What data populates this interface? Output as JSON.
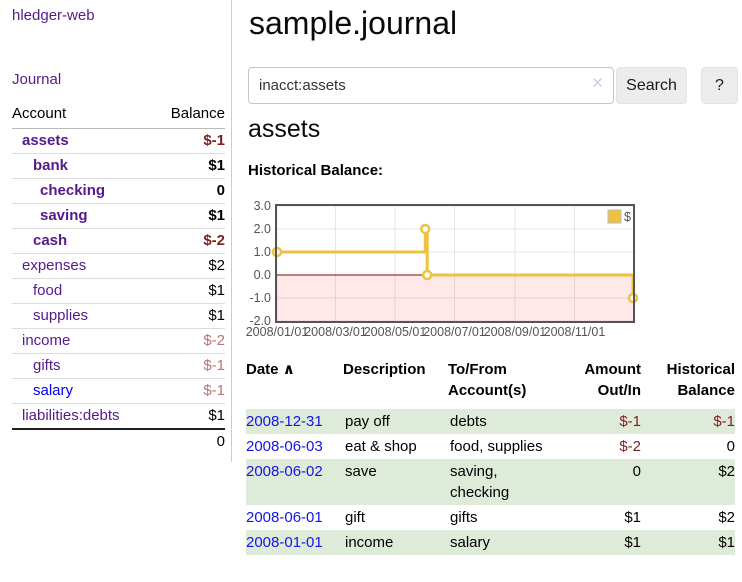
{
  "sidebar": {
    "brand": "hledger-web",
    "journal_link": "Journal",
    "accounts_table": {
      "col_account": "Account",
      "col_balance": "Balance",
      "rows": [
        {
          "name": "assets",
          "balance": "$-1",
          "name_class": "acct-link b",
          "bal_class": "neg-dark b"
        },
        {
          "name": "bank",
          "balance": "$1",
          "name_class": "acct-link b",
          "bal_class": "pos b"
        },
        {
          "name": "checking",
          "balance": "0",
          "name_class": "acct-link b",
          "bal_class": "pos b"
        },
        {
          "name": "saving",
          "balance": "$1",
          "name_class": "acct-link b",
          "bal_class": "pos b"
        },
        {
          "name": "cash",
          "balance": "$-2",
          "name_class": "acct-link b",
          "bal_class": "neg-dark b"
        },
        {
          "name": "expenses",
          "balance": "$2",
          "name_class": "acct-link",
          "bal_class": "pos"
        },
        {
          "name": "food",
          "balance": "$1",
          "name_class": "acct-link",
          "bal_class": "pos"
        },
        {
          "name": "supplies",
          "balance": "$1",
          "name_class": "acct-link",
          "bal_class": "pos"
        },
        {
          "name": "income",
          "balance": "$-2",
          "name_class": "acct-link",
          "bal_class": "neg-soft"
        },
        {
          "name": "gifts",
          "balance": "$-1",
          "name_class": "acct-link",
          "bal_class": "neg-soft"
        },
        {
          "name": "salary",
          "balance": "$-1",
          "name_class": "acct-link unvisited",
          "bal_class": "neg-soft"
        },
        {
          "name": "liabilities:debts",
          "balance": "$1",
          "name_class": "acct-link",
          "bal_class": "pos"
        }
      ],
      "total": "0"
    }
  },
  "header": {
    "title": "sample.journal"
  },
  "search": {
    "value": "inacct:assets",
    "clear_icon": "×",
    "search_label": "Search",
    "help_label": "?"
  },
  "account_page": {
    "heading": "assets",
    "chart_title": "Historical Balance:"
  },
  "chart_data": {
    "type": "line",
    "steps": true,
    "series": [
      {
        "name": "$",
        "color": "#EDC240",
        "points": [
          [
            "2008-01-01",
            1.0
          ],
          [
            "2008-06-01",
            2.0
          ],
          [
            "2008-06-03",
            0.0
          ],
          [
            "2008-12-31",
            -1.0
          ]
        ]
      }
    ],
    "x_range": [
      "2008-01-01",
      "2008-12-31"
    ],
    "ylim": [
      -2.0,
      3.0
    ],
    "y_ticks": [
      {
        "v": 3.0,
        "label": "3.0"
      },
      {
        "v": 2.0,
        "label": "2.0"
      },
      {
        "v": 1.0,
        "label": "1.0"
      },
      {
        "v": 0.0,
        "label": "0.0"
      },
      {
        "v": -1.0,
        "label": "-1.0"
      },
      {
        "v": -2.0,
        "label": "-2.0"
      }
    ],
    "x_ticks": [
      {
        "v": "2008-01-01",
        "label": "2008/01/01"
      },
      {
        "v": "2008-03-01",
        "label": "2008/03/01"
      },
      {
        "v": "2008-05-01",
        "label": "2008/05/01"
      },
      {
        "v": "2008-07-01",
        "label": "2008/07/01"
      },
      {
        "v": "2008-09-01",
        "label": "2008/09/01"
      },
      {
        "v": "2008-11-01",
        "label": "2008/11/01"
      }
    ],
    "grid": true,
    "legend_position": "top-right",
    "zero_line_color": "#8B0000",
    "negative_region_color": "rgba(255,0,0,0.09)",
    "grid_line_color": "#e6e6e6",
    "border_color": "#545454"
  },
  "register": {
    "headers": {
      "date": "Date",
      "sort_icon": "∧",
      "description": "Description",
      "accounts": "To/From Account(s)",
      "amount": "Amount Out/In",
      "balance": "Historical Balance"
    },
    "rows": [
      {
        "date": "2008-12-31",
        "description": "pay off",
        "accounts": "debts",
        "amount": "$-1",
        "balance": "$-1",
        "amount_class": "neg",
        "balance_class": "neg"
      },
      {
        "date": "2008-06-03",
        "description": "eat & shop",
        "accounts": "food, supplies",
        "amount": "$-2",
        "balance": "0",
        "amount_class": "neg",
        "balance_class": "pos"
      },
      {
        "date": "2008-06-02",
        "description": "save",
        "accounts": "saving, checking",
        "amount": "0",
        "balance": "$2",
        "amount_class": "pos",
        "balance_class": "pos"
      },
      {
        "date": "2008-06-01",
        "description": "gift",
        "accounts": "gifts",
        "amount": "$1",
        "balance": "$2",
        "amount_class": "pos",
        "balance_class": "pos"
      },
      {
        "date": "2008-01-01",
        "description": "income",
        "accounts": "salary",
        "amount": "$1",
        "balance": "$1",
        "amount_class": "pos",
        "balance_class": "pos"
      }
    ]
  }
}
